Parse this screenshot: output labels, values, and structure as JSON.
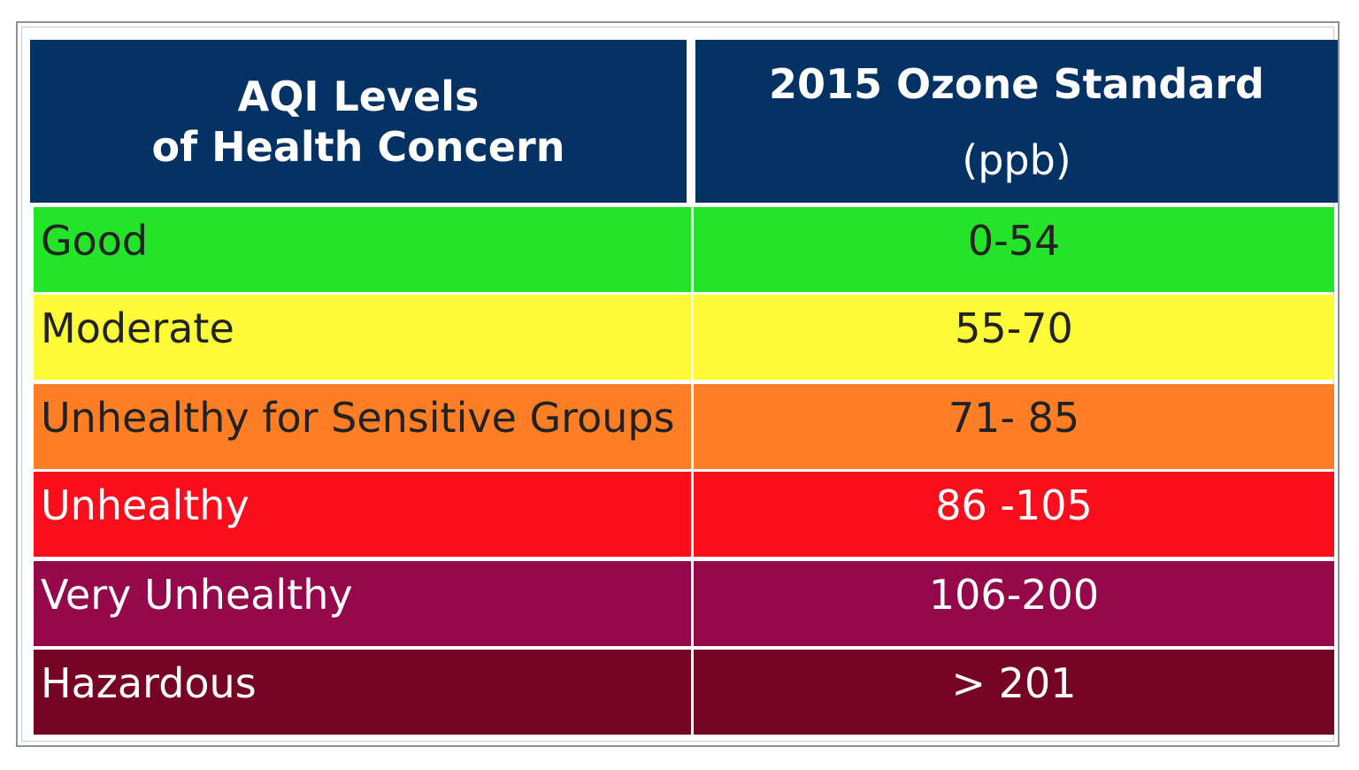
{
  "header": {
    "level_line1": "AQI Levels",
    "level_line2": "of Health Concern",
    "standard_title": "2015 Ozone Standard",
    "standard_unit": "(ppb)"
  },
  "colors": {
    "header_bg": "#053264",
    "header_text": "#ffffff"
  },
  "rows": [
    {
      "level": "Good",
      "range": "0-54",
      "bg": "#24e42a",
      "fg": "#222222"
    },
    {
      "level": "Moderate",
      "range": "55-70",
      "bg": "#fdfb37",
      "fg": "#222222"
    },
    {
      "level": "Unhealthy for Sensitive Groups",
      "range": "71- 85",
      "bg": "#fd7e25",
      "fg": "#222222"
    },
    {
      "level": "Unhealthy",
      "range": "86 -105",
      "bg": "#fa0e1c",
      "fg": "#ffffff"
    },
    {
      "level": "Very Unhealthy",
      "range": "106-200",
      "bg": "#950849",
      "fg": "#ffffff"
    },
    {
      "level": "Hazardous",
      "range": "> 201",
      "bg": "#760423",
      "fg": "#ffffff"
    }
  ]
}
